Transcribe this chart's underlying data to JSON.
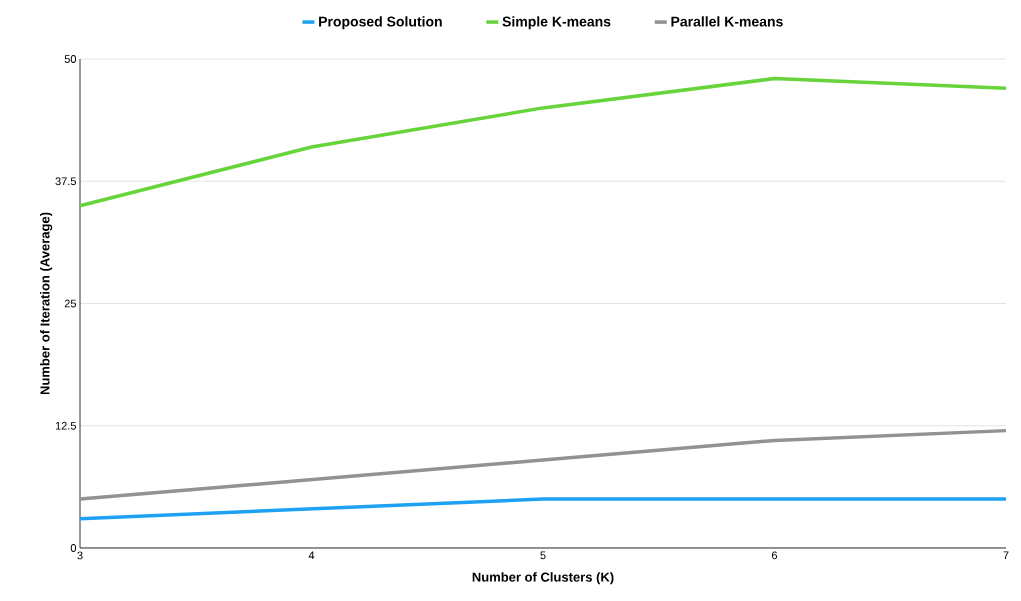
{
  "chart_data": {
    "type": "line",
    "xlabel": "Number of Clusters (K)",
    "ylabel": "Number of Iteration (Average)",
    "x": [
      3,
      4,
      5,
      6,
      7
    ],
    "xlim": [
      3,
      7
    ],
    "xticks": [
      3,
      4,
      5,
      6,
      7
    ],
    "ylim": [
      0,
      50
    ],
    "yticks": [
      0,
      12.5,
      25,
      37.5,
      50
    ],
    "grid": "y",
    "legend": "top",
    "marker": "none",
    "line_style": "solid",
    "series": [
      {
        "name": "Proposed Solution",
        "color": "#1ea1f2",
        "values": [
          3,
          4,
          5,
          5,
          5
        ]
      },
      {
        "name": "Simple K-means",
        "color": "#66d43a",
        "values": [
          35,
          41,
          45,
          48,
          47
        ]
      },
      {
        "name": "Parallel K-means",
        "color": "#929292",
        "values": [
          5,
          7,
          9,
          11,
          12
        ]
      }
    ]
  }
}
